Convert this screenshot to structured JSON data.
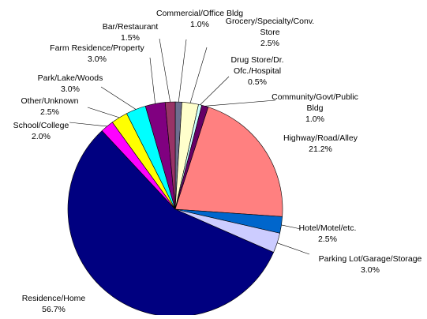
{
  "chart_data": {
    "type": "pie",
    "title": "",
    "start_angle_deg": -90,
    "direction": "clockwise",
    "slices": [
      {
        "label_lines": [
          "Commercial/Office Bldg",
          "1.0%"
        ],
        "value": 1.0,
        "color": "#6D6D8F"
      },
      {
        "label_lines": [
          "Grocery/Specialty/Conv.",
          "Store",
          "2.5%"
        ],
        "value": 2.5,
        "color": "#FFFFCC"
      },
      {
        "label_lines": [
          "Drug Store/Dr.",
          "Ofc./Hospital",
          "0.5%"
        ],
        "value": 0.5,
        "color": "#CCFFFF"
      },
      {
        "label_lines": [
          "Community/Govt/Public",
          "Bldg",
          "1.0%"
        ],
        "value": 1.0,
        "color": "#660066"
      },
      {
        "label_lines": [
          "Highway/Road/Alley",
          "21.2%"
        ],
        "value": 21.2,
        "color": "#FF8080"
      },
      {
        "label_lines": [
          "Hotel/Motel/etc.",
          "2.5%"
        ],
        "value": 2.5,
        "color": "#0066CC"
      },
      {
        "label_lines": [
          "Parking Lot/Garage/Storage",
          "3.0%"
        ],
        "value": 3.0,
        "color": "#CCCCFF"
      },
      {
        "label_lines": [
          "Residence/Home",
          "56.7%"
        ],
        "value": 56.7,
        "color": "#000080"
      },
      {
        "label_lines": [
          "School/College",
          "2.0%"
        ],
        "value": 2.0,
        "color": "#FF00FF"
      },
      {
        "label_lines": [
          "Other/Unknown",
          "2.5%"
        ],
        "value": 2.5,
        "color": "#FFFF00"
      },
      {
        "label_lines": [
          "Park/Lake/Woods",
          "3.0%"
        ],
        "value": 3.0,
        "color": "#00FFFF"
      },
      {
        "label_lines": [
          "Farm Residence/Property",
          "3.0%"
        ],
        "value": 3.0,
        "color": "#800080"
      },
      {
        "label_lines": [
          "Bar/Restaurant",
          "1.5%"
        ],
        "value": 1.5,
        "color": "#993366"
      }
    ]
  }
}
